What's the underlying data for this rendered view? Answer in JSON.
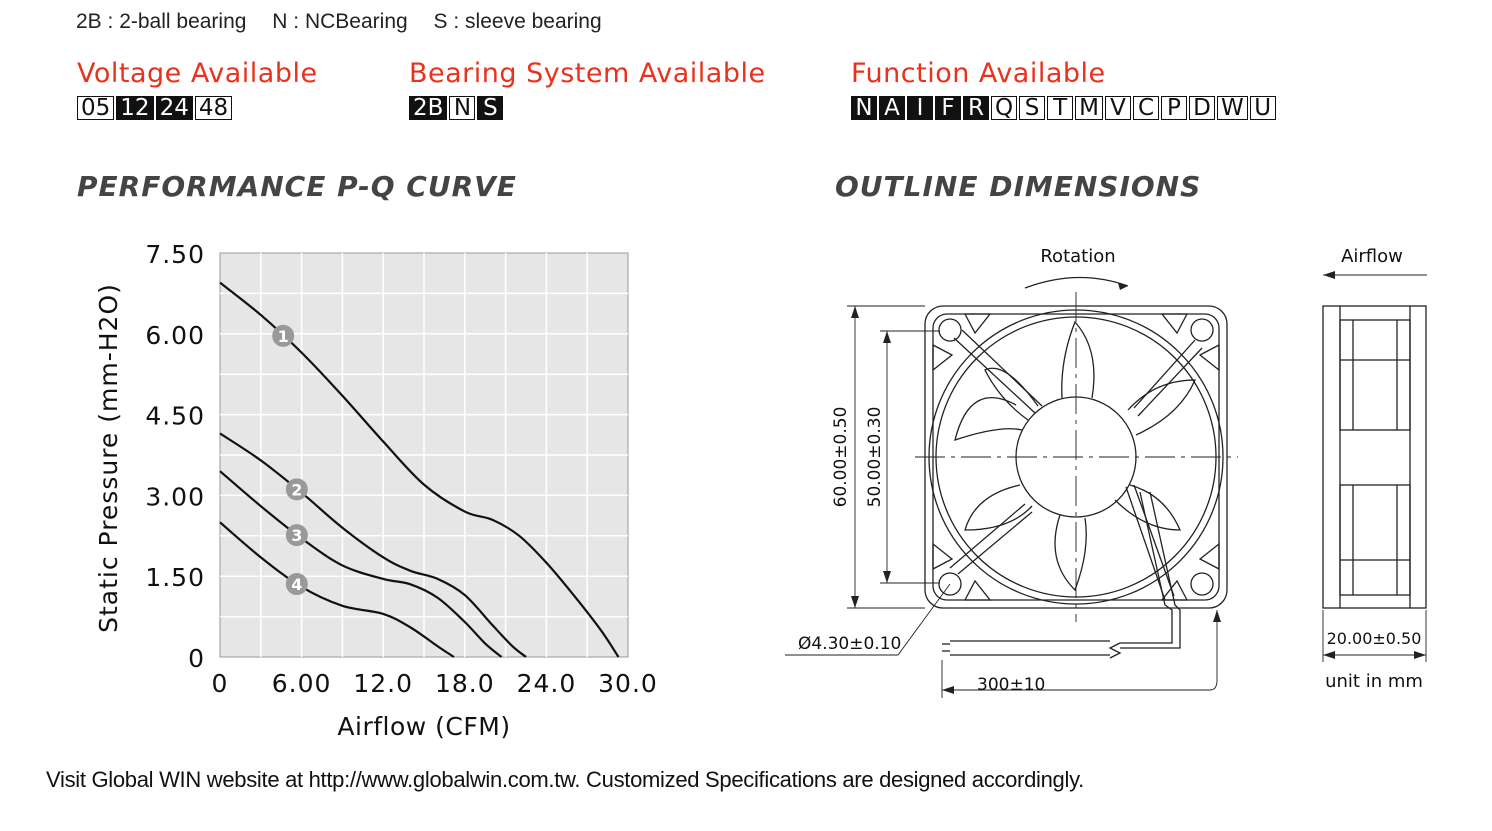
{
  "legend": [
    {
      "code": "2B",
      "desc": "2-ball bearing",
      "text": "2B : 2-ball bearing"
    },
    {
      "code": "N",
      "desc": "NCBearing",
      "text": "N : NCBearing"
    },
    {
      "code": "S",
      "desc": "sleeve bearing",
      "text": "S : sleeve bearing"
    }
  ],
  "voltage": {
    "title": "Voltage Available",
    "options": [
      {
        "label": "05",
        "available": false
      },
      {
        "label": "12",
        "available": true
      },
      {
        "label": "24",
        "available": true
      },
      {
        "label": "48",
        "available": false
      }
    ]
  },
  "bearing": {
    "title": "Bearing System Available",
    "options": [
      {
        "label": "2B",
        "available": true
      },
      {
        "label": "N",
        "available": false
      },
      {
        "label": "S",
        "available": true
      }
    ]
  },
  "function": {
    "title": "Function Available",
    "options": [
      {
        "label": "N",
        "available": true
      },
      {
        "label": "A",
        "available": true
      },
      {
        "label": "I",
        "available": true
      },
      {
        "label": "F",
        "available": true
      },
      {
        "label": "R",
        "available": true
      },
      {
        "label": "Q",
        "available": false
      },
      {
        "label": "S",
        "available": false
      },
      {
        "label": "T",
        "available": false
      },
      {
        "label": "M",
        "available": false
      },
      {
        "label": "V",
        "available": false
      },
      {
        "label": "C",
        "available": false
      },
      {
        "label": "P",
        "available": false
      },
      {
        "label": "D",
        "available": false
      },
      {
        "label": "W",
        "available": false
      },
      {
        "label": "U",
        "available": false
      }
    ]
  },
  "pq_heading": "PERFORMANCE P-Q CURVE",
  "outline_heading": "OUTLINE DIMENSIONS",
  "chart_data": {
    "type": "line",
    "title": "PERFORMANCE P-Q CURVE",
    "xlabel": "Airflow (CFM)",
    "ylabel": "Static Pressure (mm-H2O)",
    "xlim": [
      0,
      30
    ],
    "ylim": [
      0,
      7.5
    ],
    "xticks": [
      0,
      6,
      12,
      18,
      24,
      30
    ],
    "xtick_labels": [
      "0",
      "6.00",
      "12.0",
      "18.0",
      "24.0",
      "30.0"
    ],
    "yticks": [
      0,
      1.5,
      3,
      4.5,
      6,
      7.5
    ],
    "ytick_labels": [
      "0",
      "1.50",
      "3.00",
      "4.50",
      "6.00",
      "7.50"
    ],
    "grid": true,
    "series": [
      {
        "name": "1",
        "x": [
          0,
          3,
          6,
          9,
          12,
          15,
          18,
          20,
          22,
          24,
          26,
          28,
          29.3
        ],
        "y": [
          6.95,
          6.35,
          5.65,
          4.85,
          4.0,
          3.2,
          2.7,
          2.55,
          2.25,
          1.75,
          1.15,
          0.5,
          0
        ]
      },
      {
        "name": "2",
        "x": [
          0,
          3,
          6,
          9,
          12,
          14,
          16,
          18,
          20,
          21.5,
          22.5
        ],
        "y": [
          4.15,
          3.65,
          3.05,
          2.4,
          1.85,
          1.6,
          1.45,
          1.15,
          0.6,
          0.2,
          0
        ]
      },
      {
        "name": "3",
        "x": [
          0,
          3,
          6,
          9,
          12,
          14,
          16,
          18,
          19.5,
          20.7
        ],
        "y": [
          3.45,
          2.8,
          2.2,
          1.7,
          1.45,
          1.35,
          1.1,
          0.65,
          0.25,
          0
        ]
      },
      {
        "name": "4",
        "x": [
          0,
          3,
          6,
          9,
          12,
          14,
          16,
          17.2
        ],
        "y": [
          2.5,
          1.85,
          1.3,
          0.95,
          0.8,
          0.55,
          0.2,
          0
        ]
      }
    ]
  },
  "outline": {
    "rotation": "Rotation",
    "airflow": "Airflow",
    "dim_60": "60.00±0.50",
    "dim_50": "50.00±0.30",
    "hole": "Ø4.30±0.10",
    "lead": "300±10",
    "thickness": "20.00±0.50",
    "unit": "unit in mm"
  },
  "footer": "Visit Global WIN website at http://www.globalwin.com.tw. Customized Specifications are designed accordingly."
}
